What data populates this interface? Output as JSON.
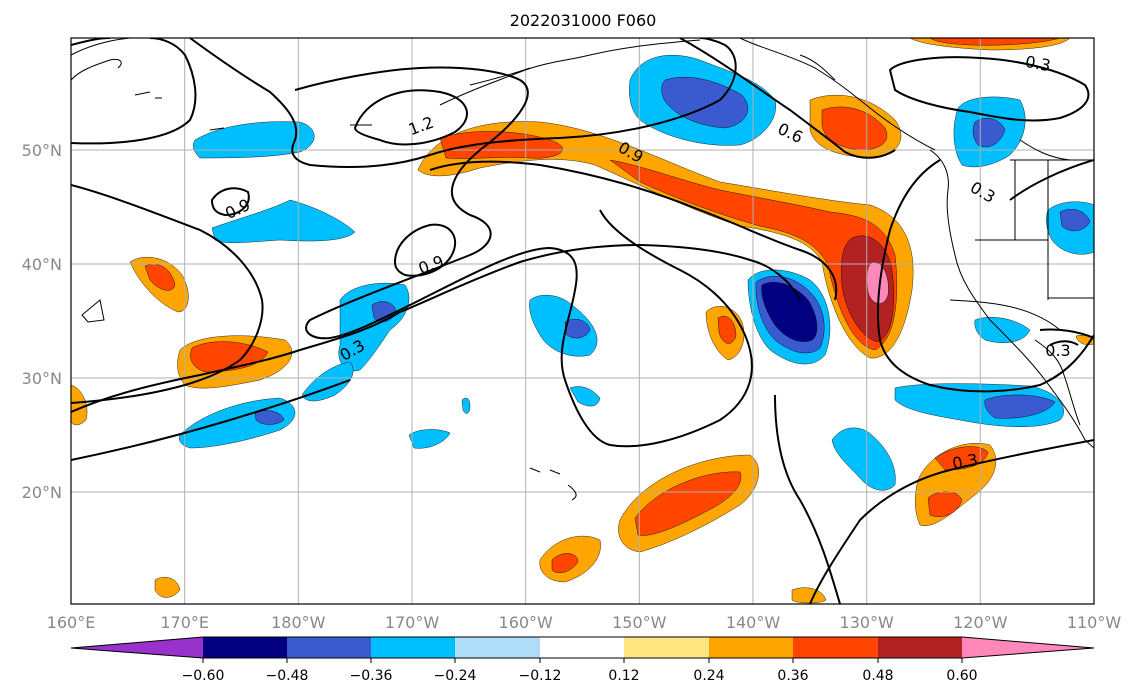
{
  "title": "2022031000 F060",
  "map": {
    "lon_labels": [
      "160°E",
      "170°E",
      "180°W",
      "170°W",
      "160°W",
      "150°W",
      "140°W",
      "130°W",
      "120°W",
      "110°W"
    ],
    "lat_labels": [
      "50°N",
      "40°N",
      "30°N",
      "20°N"
    ],
    "contour_labels": [
      "1.2",
      "0.9",
      "0.9",
      "0.9",
      "0.3",
      "0.3",
      "0.6",
      "0.3",
      "0.3",
      "0.3"
    ],
    "fill_fields": [
      {
        "level": "neg_038",
        "color": "#00bfff"
      },
      {
        "level": "neg_046",
        "color": "#3a5bd0"
      },
      {
        "level": "neg_055",
        "color": "#000080"
      },
      {
        "level": "pos_026",
        "color": "#ffa500"
      },
      {
        "level": "pos_038",
        "color": "#ff4500"
      },
      {
        "level": "pos_050",
        "color": "#b22222"
      },
      {
        "level": "pos_062",
        "color": "#ff88bb"
      }
    ]
  },
  "colorbar": {
    "colors": [
      "#9932cc",
      "#000080",
      "#3a5bd0",
      "#00bfff",
      "#afdcf7",
      "#ffffff",
      "#ffe680",
      "#ffa500",
      "#ff4500",
      "#b22222",
      "#ff88bb"
    ],
    "ticks": [
      "−0.60",
      "−0.48",
      "−0.36",
      "−0.24",
      "−0.12",
      "0.12",
      "0.24",
      "0.36",
      "0.48",
      "0.60"
    ]
  }
}
